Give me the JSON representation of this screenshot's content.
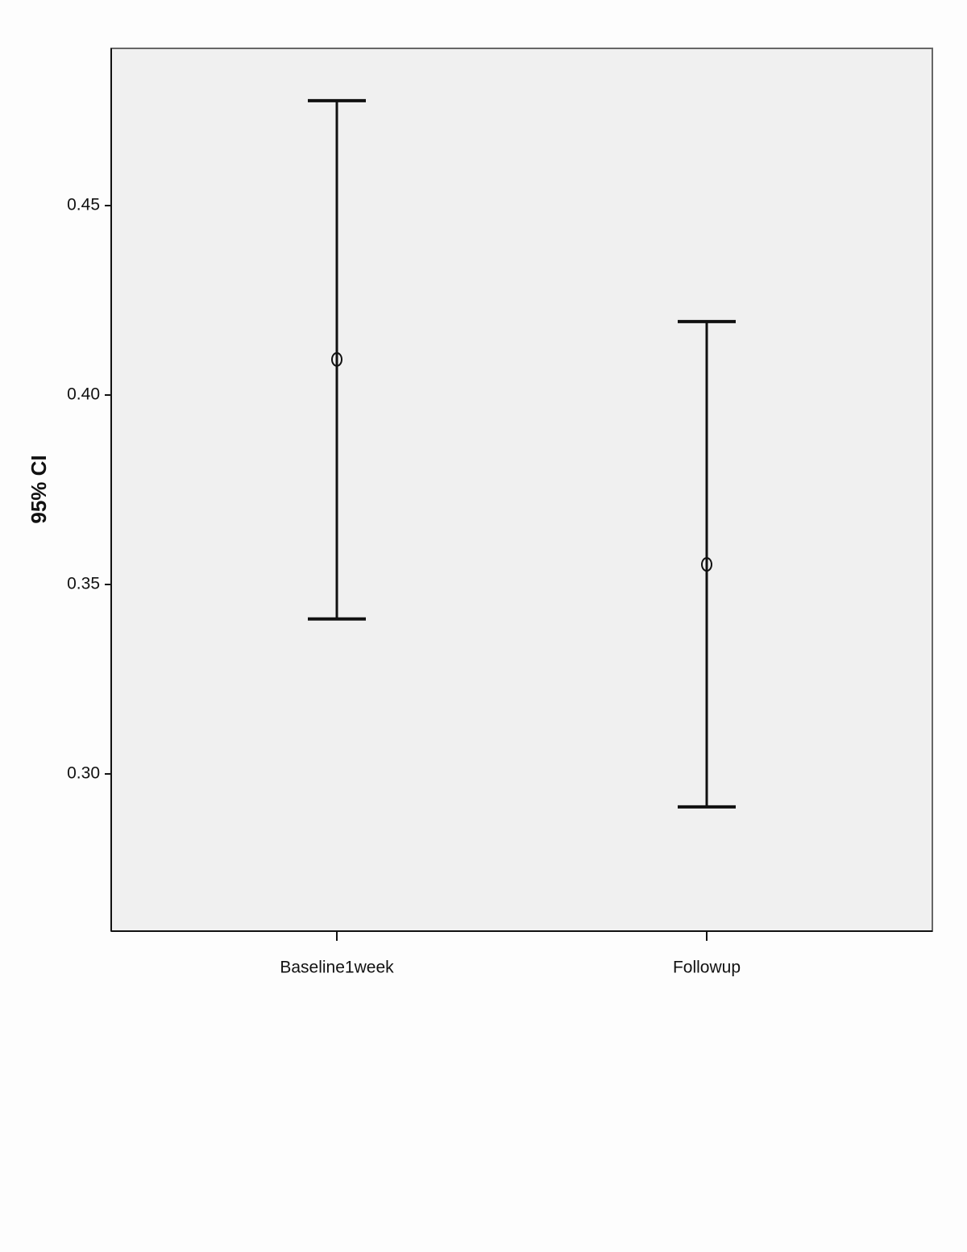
{
  "chart_data": {
    "type": "errorbar",
    "y_label": "95% CI",
    "categories": [
      "Baseline1week",
      "Followup"
    ],
    "values": [
      0.4094,
      0.3553
    ],
    "lower": [
      0.3409,
      0.2913
    ],
    "upper": [
      0.4777,
      0.4194
    ],
    "color": "#111111",
    "ylim": [
      0.2585,
      0.4915
    ],
    "yticks": [
      {
        "value": 0.3,
        "label": "0.30"
      },
      0.35,
      {
        "value": 0.4,
        "label": "0.40"
      },
      0.45
    ]
  }
}
